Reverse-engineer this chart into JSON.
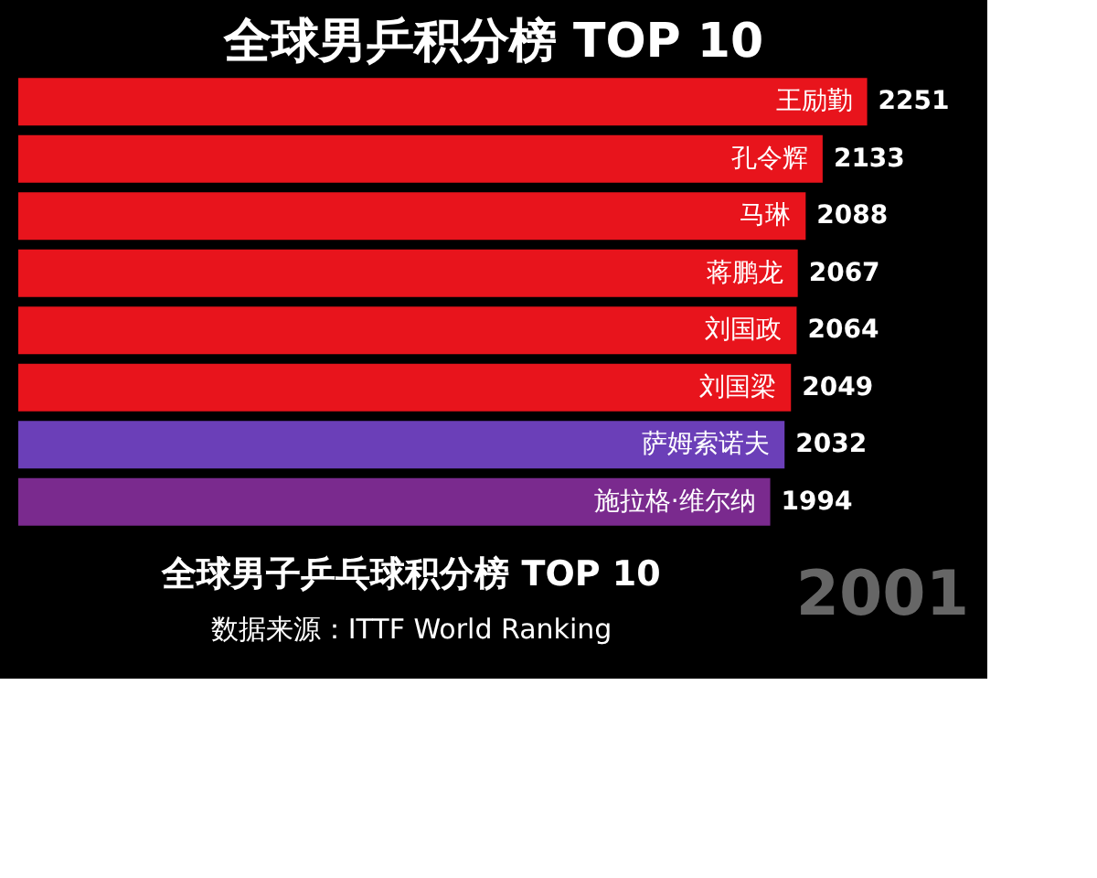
{
  "chart_data": {
    "type": "bar",
    "orientation": "horizontal",
    "title": "全球男乒积分榜 TOP 10",
    "categories": [
      "王励勤",
      "孔令辉",
      "马琳",
      "蒋鹏龙",
      "刘国政",
      "刘国梁",
      "萨姆索诺夫",
      "施拉格·维尔纳"
    ],
    "values": [
      2251,
      2133,
      2088,
      2067,
      2064,
      2049,
      2032,
      1994
    ],
    "colors": [
      "#e8141c",
      "#e8141c",
      "#e8141c",
      "#e8141c",
      "#e8141c",
      "#e8141c",
      "#6b3fb8",
      "#7a2a8e"
    ],
    "data_labels": true,
    "tick_labels": false,
    "grid": false,
    "annotations": [
      "全球男子乒乓球积分榜 TOP 10",
      "数据来源：ITTF World Ranking",
      "2001"
    ]
  }
}
